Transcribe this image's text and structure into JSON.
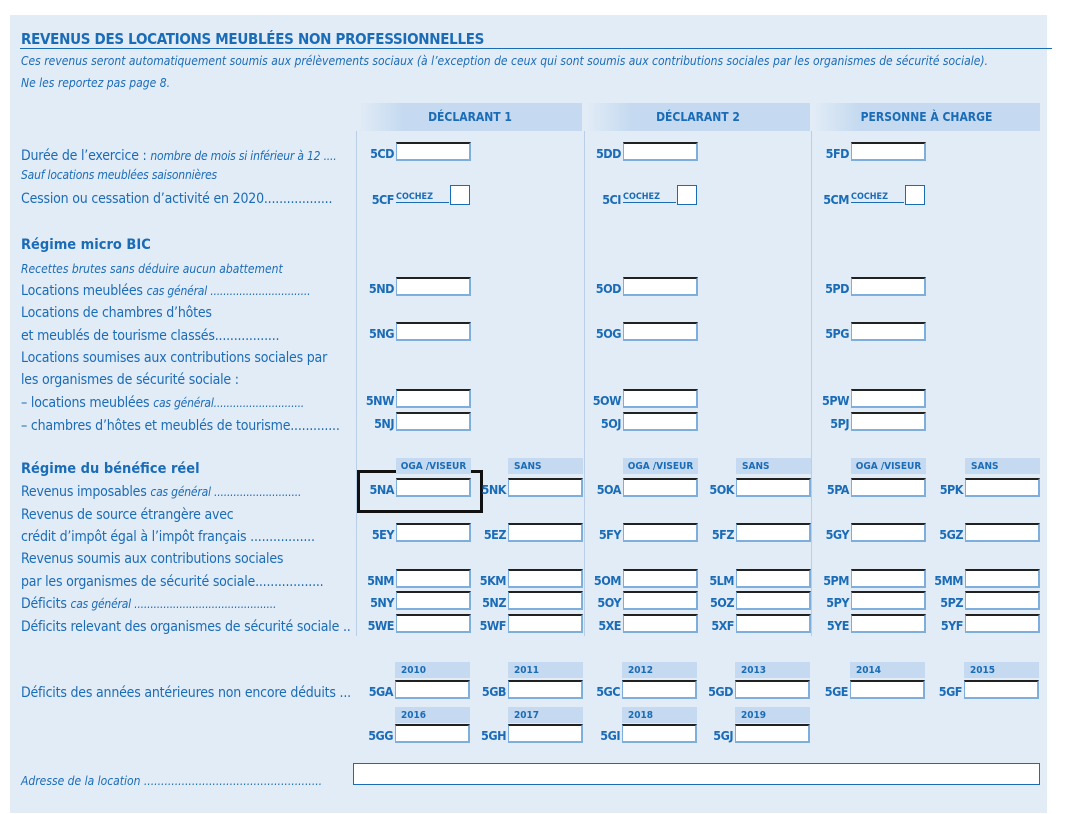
{
  "title": "REVENUS DES LOCATIONS MEUBLÉES NON PROFESSIONNELLES",
  "intro": [
    "Ces revenus seront automatiquement soumis aux prélèvements sociaux (à l’exception de ceux qui sont soumis aux contributions sociales par les organismes de sécurité sociale).",
    "Ne les reportez pas page 8."
  ],
  "columns": [
    "DÉCLARANT 1",
    "DÉCLARANT 2",
    "PERSONNE À CHARGE"
  ],
  "cochez": "COCHEZ",
  "general": {
    "rows": [
      {
        "label": "Durée de l’exercice : ",
        "label_italic": "nombre de mois si inférieur à 12 ....",
        "codes": [
          "5CD",
          "5DD",
          "5FD"
        ]
      },
      {
        "label": "",
        "label_italic": "Sauf locations meublées saisonnières"
      },
      {
        "label": "Cession ou cessation d’activité en 2020..................",
        "codes": [
          "5CF",
          "5CI",
          "5CM"
        ],
        "checkbox": true
      }
    ]
  },
  "micro": {
    "heading": "Régime micro BIC",
    "note": "Recettes brutes sans déduire aucun abattement",
    "rows": [
      {
        "label": "Locations meublées ",
        "label_italic": "cas général ...............................",
        "codes": [
          "5ND",
          "5OD",
          "5PD"
        ]
      },
      {
        "label": "Locations de chambres d’hôtes"
      },
      {
        "label": "et meublés de tourisme classés.................",
        "codes": [
          "5NG",
          "5OG",
          "5PG"
        ]
      },
      {
        "label": "Locations soumises aux contributions sociales par"
      },
      {
        "label": "les organismes de sécurité sociale :"
      },
      {
        "label": "– locations meublées ",
        "label_italic": "cas général............................",
        "codes": [
          "5NW",
          "5OW",
          "5PW"
        ]
      },
      {
        "label": "– chambres d’hôtes et meublés de tourisme.............",
        "codes": [
          "5NJ",
          "5OJ",
          "5PJ"
        ]
      }
    ]
  },
  "reel": {
    "heading": "Régime du bénéfice réel",
    "subheaders": [
      "OGA /VISEUR",
      "SANS"
    ],
    "rows": [
      {
        "label": "Revenus imposables ",
        "label_italic": "cas général ...........................",
        "codes": [
          "5NA",
          "5NK",
          "5OA",
          "5OK",
          "5PA",
          "5PK"
        ]
      },
      {
        "label": "Revenus de source étrangère avec"
      },
      {
        "label": "crédit d’impôt égal à l’impôt français .................",
        "codes": [
          "5EY",
          "5EZ",
          "5FY",
          "5FZ",
          "5GY",
          "5GZ"
        ]
      },
      {
        "label": "Revenus soumis aux contributions sociales"
      },
      {
        "label": "par les organismes de sécurité sociale..................",
        "codes": [
          "5NM",
          "5KM",
          "5OM",
          "5LM",
          "5PM",
          "5MM"
        ]
      },
      {
        "label": "Déficits ",
        "label_italic": "cas général ............................................",
        "codes": [
          "5NY",
          "5NZ",
          "5OY",
          "5OZ",
          "5PY",
          "5PZ"
        ]
      },
      {
        "label": "Déficits relevant des organismes de sécurité sociale ..",
        "codes": [
          "5WE",
          "5WF",
          "5XE",
          "5XF",
          "5YE",
          "5YF"
        ]
      }
    ]
  },
  "deficits": {
    "label": "Déficits des années antérieures non encore déduits ...",
    "row1": [
      {
        "year": "2010",
        "code": "5GA"
      },
      {
        "year": "2011",
        "code": "5GB"
      },
      {
        "year": "2012",
        "code": "5GC"
      },
      {
        "year": "2013",
        "code": "5GD"
      },
      {
        "year": "2014",
        "code": "5GE"
      },
      {
        "year": "2015",
        "code": "5GF"
      }
    ],
    "row2": [
      {
        "year": "2016",
        "code": "5GG"
      },
      {
        "year": "2017",
        "code": "5GH"
      },
      {
        "year": "2018",
        "code": "5GI"
      },
      {
        "year": "2019",
        "code": "5GJ"
      }
    ]
  },
  "address": {
    "label": "Adresse de la location ....................................................",
    "value": ""
  },
  "colors": {
    "brand": "#1b6cb7",
    "panel": "#e2ecf6",
    "header": "#c5daf0"
  }
}
